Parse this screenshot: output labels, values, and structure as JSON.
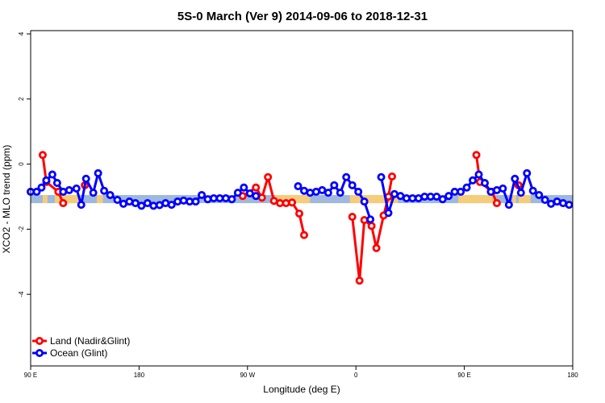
{
  "chart_data": {
    "type": "line",
    "title": "5S-0 March (Ver 9)   2014-09-06 to 2018-12-31",
    "xlabel": "Longitude (deg E)",
    "ylabel": "XCO2 - MLO trend (ppm)",
    "xlim": [
      90,
      540
    ],
    "ylim": [
      -6.2,
      4.1
    ],
    "x_ticks": [
      {
        "value": 90,
        "label": "90 E"
      },
      {
        "value": 180,
        "label": "180"
      },
      {
        "value": 270,
        "label": "90 W"
      },
      {
        "value": 360,
        "label": "0"
      },
      {
        "value": 450,
        "label": "90 E"
      },
      {
        "value": 540,
        "label": "180"
      }
    ],
    "y_ticks": [
      {
        "value": 4,
        "label": "4"
      },
      {
        "value": 2,
        "label": "2"
      },
      {
        "value": 0,
        "label": "0"
      },
      {
        "value": -2,
        "label": "-2"
      },
      {
        "value": -4,
        "label": "-4"
      }
    ],
    "band": {
      "y_low": -1.2,
      "y_high": -0.95,
      "color": "#9fb8dc"
    },
    "land_bars": [
      {
        "x_start": 100,
        "x_end": 104
      },
      {
        "x_start": 110,
        "x_end": 130
      },
      {
        "x_start": 145,
        "x_end": 150
      },
      {
        "x_start": 293,
        "x_end": 322
      },
      {
        "x_start": 355,
        "x_end": 395
      },
      {
        "x_start": 445,
        "x_end": 475
      },
      {
        "x_start": 490,
        "x_end": 493
      },
      {
        "x_start": 495,
        "x_end": 505
      }
    ],
    "land_bar_color": "#f5cc7a",
    "legend": {
      "position": "bottom-left"
    },
    "series": [
      {
        "name": "Land (Nadir&Glint)",
        "color": "#ff0000",
        "segments": [
          [
            [
              100,
              0.28
            ],
            [
              103,
              -0.55
            ],
            [
              113,
              -0.85
            ],
            [
              117,
              -1.2
            ]
          ],
          [
            [
              135,
              -0.65
            ]
          ],
          [
            [
              266,
              -0.98
            ],
            [
              277,
              -0.72
            ],
            [
              282,
              -1.03
            ],
            [
              287,
              -0.4
            ],
            [
              292,
              -1.13
            ],
            [
              297,
              -1.2
            ],
            [
              302,
              -1.2
            ],
            [
              307,
              -1.18
            ],
            [
              313,
              -1.52
            ],
            [
              317,
              -2.18
            ]
          ],
          [
            [
              357,
              -1.62
            ],
            [
              363,
              -3.58
            ],
            [
              367,
              -1.72
            ],
            [
              373,
              -1.9
            ],
            [
              377,
              -2.58
            ],
            [
              383,
              -1.58
            ],
            [
              387,
              -1.0
            ],
            [
              390,
              -0.38
            ]
          ],
          [
            [
              460,
              0.28
            ],
            [
              463,
              -0.55
            ],
            [
              473,
              -0.85
            ],
            [
              477,
              -1.2
            ]
          ],
          [
            [
              495,
              -0.65
            ]
          ]
        ]
      },
      {
        "name": "Ocean (Glint)",
        "color": "#0000ff",
        "segments": [
          [
            [
              90,
              -0.85
            ],
            [
              95,
              -0.85
            ],
            [
              99,
              -0.72
            ],
            [
              103,
              -0.5
            ],
            [
              108,
              -0.32
            ],
            [
              112,
              -0.58
            ],
            [
              117,
              -0.85
            ],
            [
              122,
              -0.8
            ],
            [
              128,
              -0.75
            ],
            [
              132,
              -1.25
            ],
            [
              136,
              -0.45
            ],
            [
              142,
              -0.88
            ],
            [
              146,
              -0.28
            ],
            [
              151,
              -0.82
            ],
            [
              156,
              -0.95
            ],
            [
              162,
              -1.1
            ],
            [
              167,
              -1.22
            ],
            [
              172,
              -1.15
            ],
            [
              177,
              -1.2
            ],
            [
              182,
              -1.28
            ],
            [
              187,
              -1.2
            ],
            [
              192,
              -1.28
            ],
            [
              197,
              -1.26
            ],
            [
              202,
              -1.2
            ],
            [
              207,
              -1.25
            ],
            [
              212,
              -1.15
            ],
            [
              217,
              -1.12
            ],
            [
              222,
              -1.15
            ],
            [
              227,
              -1.15
            ],
            [
              232,
              -0.95
            ],
            [
              237,
              -1.08
            ],
            [
              242,
              -1.05
            ],
            [
              247,
              -1.05
            ],
            [
              252,
              -1.05
            ],
            [
              257,
              -1.08
            ],
            [
              262,
              -0.88
            ],
            [
              267,
              -0.72
            ],
            [
              272,
              -0.9
            ],
            [
              277,
              -0.98
            ]
          ],
          [
            [
              312,
              -0.68
            ],
            [
              317,
              -0.82
            ],
            [
              322,
              -0.88
            ],
            [
              327,
              -0.85
            ],
            [
              332,
              -0.8
            ],
            [
              337,
              -0.88
            ],
            [
              342,
              -0.65
            ],
            [
              347,
              -0.88
            ],
            [
              352,
              -0.4
            ],
            [
              357,
              -0.65
            ],
            [
              362,
              -0.85
            ],
            [
              367,
              -1.15
            ],
            [
              372,
              -1.7
            ]
          ],
          [
            [
              381,
              -0.4
            ],
            [
              387,
              -1.5
            ],
            [
              392,
              -0.92
            ],
            [
              397,
              -0.98
            ],
            [
              402,
              -1.05
            ],
            [
              407,
              -1.05
            ],
            [
              412,
              -1.05
            ],
            [
              417,
              -1.0
            ],
            [
              422,
              -1.0
            ],
            [
              427,
              -1.0
            ],
            [
              432,
              -1.08
            ],
            [
              437,
              -0.98
            ],
            [
              442,
              -0.85
            ],
            [
              447,
              -0.85
            ],
            [
              452,
              -0.72
            ],
            [
              457,
              -0.5
            ],
            [
              462,
              -0.32
            ],
            [
              467,
              -0.58
            ],
            [
              472,
              -0.85
            ],
            [
              477,
              -0.8
            ],
            [
              482,
              -0.75
            ],
            [
              487,
              -1.25
            ],
            [
              492,
              -0.45
            ],
            [
              497,
              -0.88
            ],
            [
              502,
              -0.28
            ],
            [
              507,
              -0.82
            ],
            [
              512,
              -0.95
            ],
            [
              517,
              -1.1
            ],
            [
              522,
              -1.22
            ],
            [
              527,
              -1.15
            ],
            [
              532,
              -1.2
            ],
            [
              537,
              -1.25
            ]
          ]
        ]
      }
    ]
  }
}
